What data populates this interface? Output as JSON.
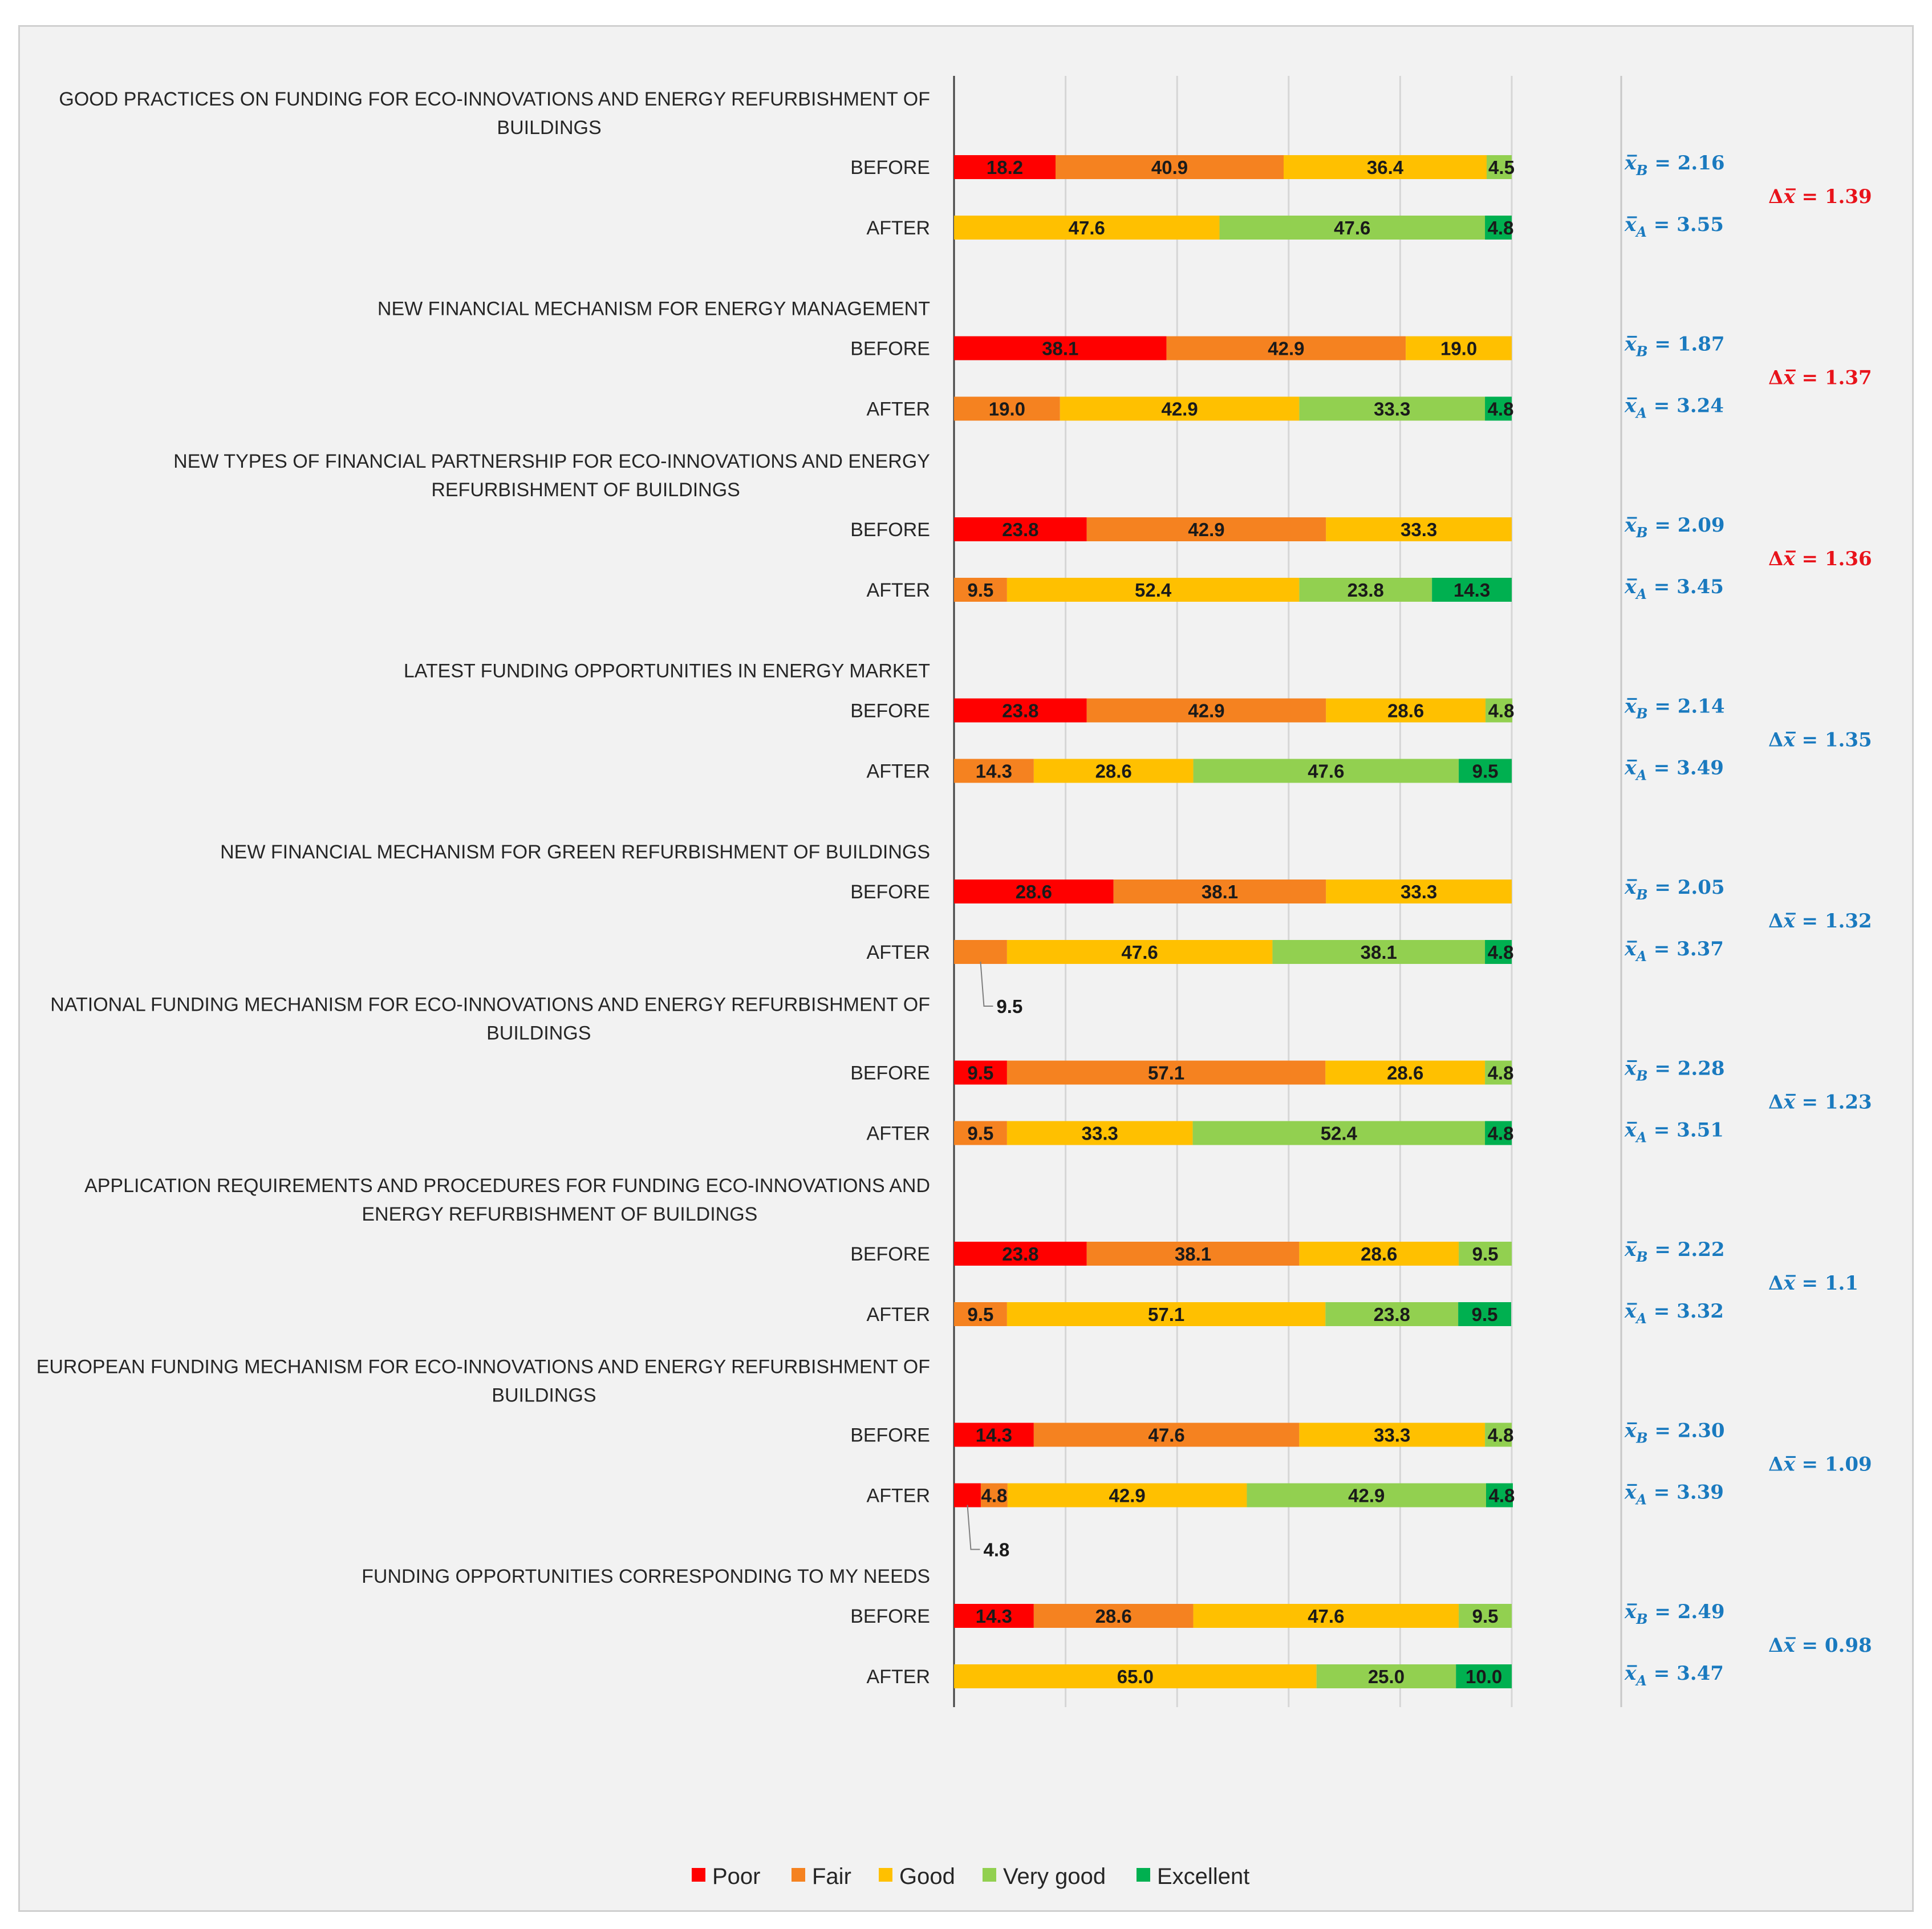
{
  "chart_data": {
    "type": "bar",
    "orientation": "horizontal",
    "stacked": true,
    "xlim": [
      0,
      100
    ],
    "grid": true,
    "legend_position": "bottom",
    "series": [
      {
        "name": "Poor",
        "color": "#ff0000"
      },
      {
        "name": "Fair",
        "color": "#f58220"
      },
      {
        "name": "Good",
        "color": "#ffc000"
      },
      {
        "name": "Very good",
        "color": "#92d050"
      },
      {
        "name": "Excellent",
        "color": "#00b050"
      }
    ],
    "categories": [
      {
        "title_lines": [
          "GOOD PRACTICES ON FUNDING FOR ECO-INNOVATIONS AND ENERGY REFURBISHMENT OF",
          "BUILDINGS"
        ],
        "before_label": "BEFORE",
        "after_label": "AFTER",
        "before": [
          18.2,
          40.9,
          36.4,
          4.5,
          0
        ],
        "after": [
          0,
          0,
          47.6,
          47.6,
          4.8
        ],
        "mean_before": "2.16",
        "mean_after": "3.55",
        "delta": "1.39",
        "delta_color": "#e8131b"
      },
      {
        "title_lines": [
          "NEW FINANCIAL MECHANISM  FOR ENERGY MANAGEMENT"
        ],
        "before_label": "BEFORE",
        "after_label": "AFTER",
        "before": [
          38.1,
          42.9,
          19.0,
          0,
          0
        ],
        "after": [
          0,
          19.0,
          42.9,
          33.3,
          4.8
        ],
        "mean_before": "1.87",
        "mean_after": "3.24",
        "delta": "1.37",
        "delta_color": "#e8131b"
      },
      {
        "title_lines": [
          "NEW TYPES OF FINANCIAL PARTNERSHIP  FOR ECO-INNOVATIONS AND ENERGY",
          "REFURBISHMENT OF BUILDINGS"
        ],
        "before_label": "BEFORE",
        "after_label": "AFTER",
        "before": [
          23.8,
          42.9,
          33.3,
          0,
          0
        ],
        "after": [
          0,
          9.5,
          52.4,
          23.8,
          14.3
        ],
        "mean_before": "2.09",
        "mean_after": "3.45",
        "delta": "1.36",
        "delta_color": "#e8131b"
      },
      {
        "title_lines": [
          "LATEST FUNDING OPPORTUNITIES IN ENERGY MARKET"
        ],
        "before_label": "BEFORE",
        "after_label": "AFTER",
        "before": [
          23.8,
          42.9,
          28.6,
          4.8,
          0
        ],
        "after": [
          0,
          14.3,
          28.6,
          47.6,
          9.5
        ],
        "mean_before": "2.14",
        "mean_after": "3.49",
        "delta": "1.35",
        "delta_color": "#1a7abf"
      },
      {
        "title_lines": [
          "NEW FINANCIAL MECHANISM  FOR GREEN REFURBISHMENT OF BUILDINGS"
        ],
        "before_label": "BEFORE",
        "after_label": "AFTER",
        "before": [
          28.6,
          38.1,
          33.3,
          0,
          0
        ],
        "after": [
          0,
          9.5,
          47.6,
          38.1,
          4.8
        ],
        "mean_before": "2.05",
        "mean_after": "3.37",
        "delta": "1.32",
        "delta_color": "#1a7abf",
        "after_callout": {
          "segment": 1,
          "text": "9.5"
        }
      },
      {
        "title_lines": [
          "NATIONAL FUNDING MECHANISM  FOR ECO-INNOVATIONS AND ENERGY REFURBISHMENT OF",
          "BUILDINGS"
        ],
        "before_label": "BEFORE",
        "after_label": "AFTER",
        "before": [
          9.5,
          57.1,
          28.6,
          4.8,
          0
        ],
        "after": [
          0,
          9.5,
          33.3,
          52.4,
          4.8
        ],
        "mean_before": "2.28",
        "mean_after": "3.51",
        "delta": "1.23",
        "delta_color": "#1a7abf"
      },
      {
        "title_lines": [
          "APPLICATION REQUIREMENTS AND PROCEDURES FOR FUNDING ECO-INNOVATIONS AND",
          "ENERGY REFURBISHMENT OF BUILDINGS"
        ],
        "before_label": "BEFORE",
        "after_label": "AFTER",
        "before": [
          23.8,
          38.1,
          28.6,
          9.5,
          0
        ],
        "after": [
          0,
          9.5,
          57.1,
          23.8,
          9.5
        ],
        "mean_before": "2.22",
        "mean_after": "3.32",
        "delta": "1.1",
        "delta_color": "#1a7abf"
      },
      {
        "title_lines": [
          "EUROPEAN FUNDING MECHANISM FOR ECO-INNOVATIONS AND ENERGY REFURBISHMENT OF",
          "BUILDINGS"
        ],
        "before_label": "BEFORE",
        "after_label": "AFTER",
        "before": [
          14.3,
          47.6,
          33.3,
          4.8,
          0
        ],
        "after": [
          4.8,
          4.8,
          42.9,
          42.9,
          4.8
        ],
        "mean_before": "2.30",
        "mean_after": "3.39",
        "delta": "1.09",
        "delta_color": "#1a7abf",
        "after_callout": {
          "segment": 0,
          "text": "4.8"
        }
      },
      {
        "title_lines": [
          "FUNDING OPPORTUNITIES CORRESPONDING TO MY NEEDS"
        ],
        "before_label": "BEFORE",
        "after_label": "AFTER",
        "before": [
          14.3,
          28.6,
          47.6,
          9.5,
          0
        ],
        "after": [
          0,
          0,
          65.0,
          25.0,
          10.0
        ],
        "mean_before": "2.49",
        "mean_after": "3.47",
        "delta": "0.98",
        "delta_color": "#1a7abf"
      }
    ]
  }
}
